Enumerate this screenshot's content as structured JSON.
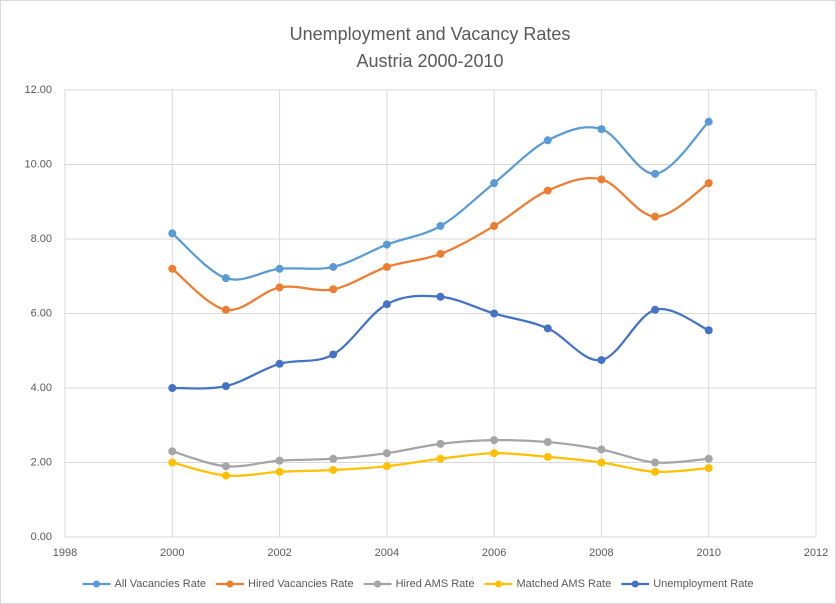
{
  "chart_data": {
    "type": "line",
    "smooth": true,
    "title": "Unemployment and Vacancy Rates",
    "subtitle": "Austria 2000-2010",
    "x": [
      2000,
      2001,
      2002,
      2003,
      2004,
      2005,
      2006,
      2007,
      2008,
      2009,
      2010
    ],
    "series": [
      {
        "name": "All Vacancies Rate",
        "color": "#5b9bd5",
        "values": [
          8.15,
          6.95,
          7.2,
          7.25,
          7.85,
          8.35,
          9.5,
          10.65,
          10.95,
          9.75,
          11.15
        ]
      },
      {
        "name": "Hired Vacancies Rate",
        "color": "#ed7d31",
        "values": [
          7.2,
          6.1,
          6.7,
          6.65,
          7.25,
          7.6,
          8.35,
          9.3,
          9.6,
          8.6,
          9.5
        ]
      },
      {
        "name": "Hired AMS Rate",
        "color": "#a5a5a5",
        "values": [
          2.3,
          1.9,
          2.05,
          2.1,
          2.25,
          2.5,
          2.6,
          2.55,
          2.35,
          2.0,
          2.1
        ]
      },
      {
        "name": "Matched AMS Rate",
        "color": "#ffc000",
        "values": [
          2.0,
          1.65,
          1.75,
          1.8,
          1.9,
          2.1,
          2.25,
          2.15,
          2.0,
          1.75,
          1.85
        ]
      },
      {
        "name": "Unemployment Rate",
        "color": "#4472c4",
        "values": [
          4.0,
          4.05,
          4.65,
          4.9,
          6.25,
          6.45,
          6.0,
          5.6,
          4.75,
          6.1,
          5.55
        ]
      }
    ],
    "xlim": [
      1998,
      2012
    ],
    "xticks": [
      1998,
      2000,
      2002,
      2004,
      2006,
      2008,
      2010,
      2012
    ],
    "ylim": [
      0,
      12
    ],
    "yticks": [
      {
        "value": 0,
        "label": "0.00"
      },
      {
        "value": 2,
        "label": "2.00"
      },
      {
        "value": 4,
        "label": "4.00"
      },
      {
        "value": 6,
        "label": "6.00"
      },
      {
        "value": 8,
        "label": "8.00"
      },
      {
        "value": 10,
        "label": "10.00"
      },
      {
        "value": 12,
        "label": "12.00"
      }
    ],
    "grid": true,
    "legend": "bottom"
  }
}
